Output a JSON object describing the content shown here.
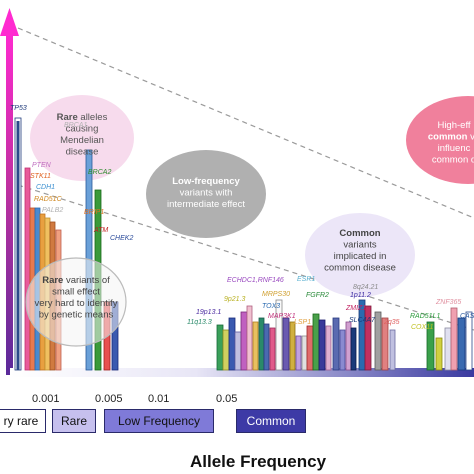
{
  "chart_data": {
    "type": "bar",
    "xlabel": "Allele Frequency",
    "x_ticks": [
      "0.001",
      "0.005",
      "0.01",
      "0.05"
    ],
    "frequency_categories": [
      "ry rare",
      "Rare",
      "Low Frequency",
      "Common"
    ],
    "bubbles": [
      {
        "lines": [
          [
            {
              "t": "Rare",
              "b": true
            },
            {
              "t": " alleles",
              "b": false
            }
          ],
          [
            {
              "t": "causing",
              "b": false
            }
          ],
          [
            {
              "t": "Mendelian",
              "b": false
            }
          ],
          [
            {
              "t": "disease",
              "b": false
            }
          ]
        ]
      },
      {
        "lines": [
          [
            {
              "t": "Low-frequency",
              "b": true
            }
          ],
          [
            {
              "t": "variants with",
              "b": false
            }
          ],
          [
            {
              "t": "intermediate effect",
              "b": false
            }
          ]
        ]
      },
      {
        "lines": [
          [
            {
              "t": "Common",
              "b": true
            }
          ],
          [
            {
              "t": "variants",
              "b": false
            }
          ],
          [
            {
              "t": "implicated in",
              "b": false
            }
          ],
          [
            {
              "t": "common disease",
              "b": false
            }
          ]
        ]
      },
      {
        "lines": [
          [
            {
              "t": "High-eff",
              "b": false
            }
          ],
          [
            {
              "t": "common",
              "b": true
            },
            {
              "t": " va",
              "b": false
            }
          ],
          [
            {
              "t": "influenc",
              "b": false
            }
          ],
          [
            {
              "t": "common d",
              "b": false
            }
          ]
        ]
      },
      {
        "lines": [
          [
            {
              "t": "Rare",
              "b": true
            },
            {
              "t": " variants of",
              "b": false
            }
          ],
          [
            {
              "t": "small effect",
              "b": false
            }
          ],
          [
            {
              "t": "very hard to identify",
              "b": false
            }
          ],
          [
            {
              "t": "by genetic means",
              "b": false
            }
          ]
        ]
      }
    ],
    "genes": [
      {
        "label": "TP53",
        "color": "#1f3a7a"
      },
      {
        "label": "BRCA1",
        "color": "#b0b0b0"
      },
      {
        "label": "PTEN",
        "color": "#c070c0"
      },
      {
        "label": "STK11",
        "color": "#e06020"
      },
      {
        "label": "CDH1",
        "color": "#3a8fd0"
      },
      {
        "label": "RAD51C",
        "color": "#d08820"
      },
      {
        "label": "PALB2",
        "color": "#b0b0b0"
      },
      {
        "label": "BRCA2",
        "color": "#2a8a2a"
      },
      {
        "label": "BRIP1",
        "color": "#e07020"
      },
      {
        "label": "ATM",
        "color": "#c02020"
      },
      {
        "label": "CHEK2",
        "color": "#2a4a9a"
      },
      {
        "label": "ECHDC1,RNF146",
        "color": "#9a4ac0"
      },
      {
        "label": "9p21.3",
        "color": "#b8b020"
      },
      {
        "label": "MRPS30",
        "color": "#d0a030"
      },
      {
        "label": "19p13.1",
        "color": "#4a2aa0"
      },
      {
        "label": "11q13.3",
        "color": "#2a8a6a"
      },
      {
        "label": "TOX3",
        "color": "#2a6ab0"
      },
      {
        "label": "MAP3K1",
        "color": "#c0307a"
      },
      {
        "label": "LSP1",
        "color": "#e0a040"
      },
      {
        "label": "ESR1",
        "color": "#5ab0d0"
      },
      {
        "label": "FGFR2",
        "color": "#2a8a3a"
      },
      {
        "label": "1p11.2",
        "color": "#3a2aa0"
      },
      {
        "label": "ZMIZ1",
        "color": "#c02060"
      },
      {
        "label": "SLC4A7",
        "color": "#1a3a7a"
      },
      {
        "label": "8q24.21",
        "color": "#8a8a8a"
      },
      {
        "label": "2q35",
        "color": "#e06060"
      },
      {
        "label": "RAD51L1",
        "color": "#2a9a3a"
      },
      {
        "label": "COX11",
        "color": "#c0c020"
      },
      {
        "label": "ZNF365",
        "color": "#e090a0"
      },
      {
        "label": "CAS",
        "color": "#2a5aa0"
      }
    ]
  },
  "colors": {
    "axis_top": "#c0308a",
    "axis_bottom": "#2a2a9a",
    "legend_very_rare": "#ffffff",
    "legend_rare": "#c6c0ee",
    "legend_low": "#7f7ad8",
    "legend_common": "#3d3aa6"
  }
}
